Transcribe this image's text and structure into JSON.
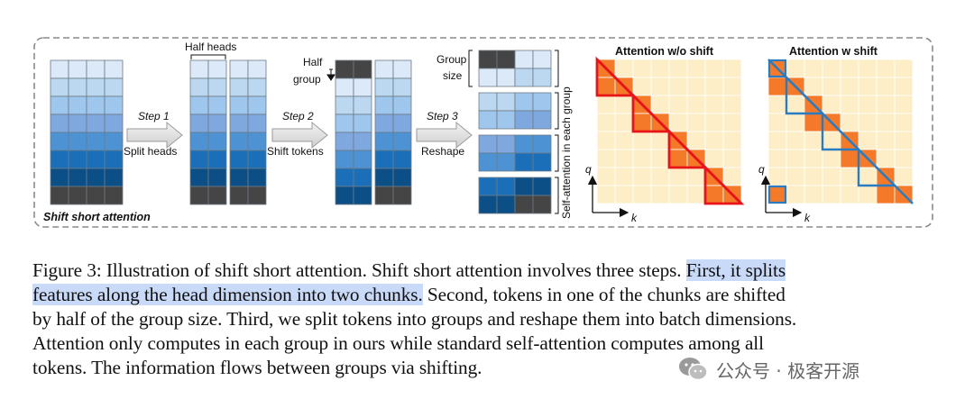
{
  "figure": {
    "left_panel_label": "Shift short attention",
    "half_heads_label": "Half heads",
    "half_group_label_1": "Half",
    "half_group_label_2": "group",
    "group_size_label_1": "Group",
    "group_size_label_2": "size",
    "step1_label": "Step 1",
    "step1_caption": "Split heads",
    "step2_label": "Step 2",
    "step2_caption": "Shift tokens",
    "step3_label": "Step 3",
    "step3_caption": "Reshape",
    "vertical_label": "Self-attention in each group",
    "attn_without_title": "Attention w/o shift",
    "attn_with_title": "Attention w shift",
    "axis_q": "q",
    "axis_k": "k",
    "colors": {
      "blue_1": "#dbe9f8",
      "blue_2": "#bcd8f1",
      "blue_3": "#9fc6ec",
      "blue_4": "#7fa9de",
      "blue_5": "#4d93d4",
      "blue_6": "#1a6fb8",
      "blue_7": "#0c4f86",
      "dark": "#454545",
      "attn_bg": "#fdeec7",
      "attn_fill": "#f47a2a",
      "red_outline": "#e8141b",
      "blue_outline": "#2a7cc2"
    }
  },
  "caption": {
    "line1_a": "Figure 3: Illustration of shift short attention. Shift short attention involves three steps. ",
    "line1_b": "First, it splits",
    "line2_a": "features along the head dimension into two chunks.",
    "line2_b": " Second, tokens in one of the chunks are shifted",
    "line3": "by half of the group size. Third, we split tokens into groups and reshape them into batch dimensions.",
    "line4": "Attention only computes in each group in ours while standard self-attention computes among all",
    "line5": "tokens. The information flows between groups via shifting."
  },
  "watermark": {
    "text": "公众号 · 极客开源"
  }
}
